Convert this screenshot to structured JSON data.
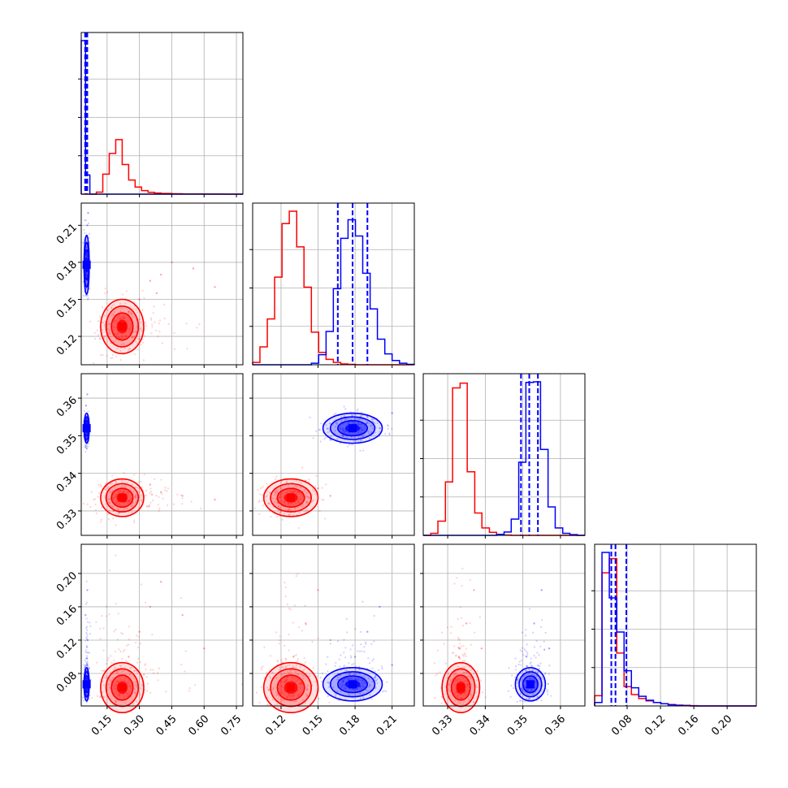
{
  "chart_data": {
    "type": "corner",
    "title": "",
    "colors": {
      "series_a": "#ff0000",
      "series_b": "#0000ff",
      "grid": "#b0b0b0"
    },
    "dims": [
      {
        "range": [
          0.03,
          0.78
        ],
        "ticks": [
          "0.15",
          "0.30",
          "0.45",
          "0.60",
          "0.75"
        ],
        "tick_values": [
          0.15,
          0.3,
          0.45,
          0.6,
          0.75
        ]
      },
      {
        "range": [
          0.097,
          0.228
        ],
        "ticks": [
          "0.12",
          "0.15",
          "0.18",
          "0.21"
        ],
        "tick_values": [
          0.12,
          0.15,
          0.18,
          0.21
        ]
      },
      {
        "range": [
          0.3235,
          0.3665
        ],
        "ticks": [
          "0.33",
          "0.34",
          "0.35",
          "0.36"
        ],
        "tick_values": [
          0.33,
          0.34,
          0.35,
          0.36
        ]
      },
      {
        "range": [
          0.041,
          0.235
        ],
        "ticks": [
          "0.08",
          "0.12",
          "0.16",
          "0.20"
        ],
        "tick_values": [
          0.08,
          0.12,
          0.16,
          0.2
        ]
      }
    ],
    "series": [
      {
        "color": "#ff0000",
        "means": [
          0.22,
          0.128,
          0.3335,
          0.063
        ],
        "sds": [
          0.05,
          0.011,
          0.0025,
          0.015
        ],
        "quantiles": [],
        "histograms": [
          {
            "edges": [
              0.03,
              0.05,
              0.07,
              0.1,
              0.13,
              0.16,
              0.19,
              0.22,
              0.25,
              0.28,
              0.31,
              0.34,
              0.37,
              0.4,
              0.45,
              0.5,
              0.6,
              0.7,
              0.78
            ],
            "counts": [
              0,
              0,
              0,
              130,
              1300,
              2650,
              3550,
              1930,
              920,
              460,
              230,
              120,
              75,
              45,
              28,
              12,
              6,
              0
            ]
          },
          {
            "edges": [
              0.097,
              0.1029,
              0.1089,
              0.1148,
              0.1208,
              0.1267,
              0.1327,
              0.1386,
              0.1446,
              0.1505,
              0.1565,
              0.1624,
              0.1684,
              0.1743,
              0.1803,
              0.1862,
              0.1922,
              0.1981,
              0.2041,
              0.21,
              0.216,
              0.2219,
              0.228
            ],
            "counts": [
              30,
              230,
              590,
              1130,
              1820,
              1980,
              1520,
              1000,
              420,
              160,
              70,
              30,
              10,
              5,
              0,
              0,
              0,
              0,
              0,
              0,
              0,
              0
            ]
          },
          {
            "edges": [
              0.3235,
              0.3255,
              0.3274,
              0.3294,
              0.3313,
              0.3333,
              0.3352,
              0.3372,
              0.3391,
              0.3411,
              0.343,
              0.345,
              0.3469,
              0.3489,
              0.3508,
              0.3528,
              0.3547,
              0.3567,
              0.3586,
              0.3606,
              0.3625,
              0.3645,
              0.3665
            ],
            "counts": [
              0,
              30,
              210,
              790,
              2180,
              2250,
              940,
              330,
              110,
              45,
              15,
              5,
              0,
              0,
              0,
              0,
              0,
              0,
              0,
              0,
              0,
              0
            ]
          },
          {
            "edges": [
              0.041,
              0.0498,
              0.0586,
              0.0675,
              0.0763,
              0.0851,
              0.0939,
              0.1027,
              0.1116,
              0.1204,
              0.1292,
              0.138,
              0.1468,
              0.1557,
              0.1645,
              0.1733,
              0.1821,
              0.1909,
              0.1998,
              0.2086,
              0.2174,
              0.2262,
              0.235
            ],
            "counts": [
              180,
              2340,
              2590,
              930,
              340,
              200,
              130,
              90,
              60,
              40,
              25,
              15,
              10,
              5,
              0,
              0,
              0,
              0,
              0,
              0,
              0,
              0
            ]
          }
        ]
      },
      {
        "color": "#0000ff",
        "means": [
          0.055,
          0.178,
          0.352,
          0.067
        ],
        "sds": [
          0.006,
          0.012,
          0.002,
          0.01
        ],
        "quantiles": [
          [
            0.048,
            0.053,
            0.058
          ],
          [
            0.166,
            0.178,
            0.19
          ],
          [
            0.3495,
            0.3517,
            0.354
          ],
          [
            0.061,
            0.066,
            0.079
          ]
        ],
        "histograms": [
          {
            "edges": [
              0.03,
              0.05,
              0.07,
              0.1,
              0.13,
              0.16,
              0.19,
              0.22,
              0.25,
              0.28,
              0.31,
              0.34,
              0.37,
              0.4,
              0.45,
              0.5,
              0.6,
              0.7,
              0.78
            ],
            "counts": [
              10000,
              1250,
              0,
              0,
              0,
              0,
              0,
              0,
              0,
              0,
              0,
              0,
              0,
              0,
              0,
              0,
              0,
              0
            ]
          },
          {
            "edges": [
              0.097,
              0.1029,
              0.1089,
              0.1148,
              0.1208,
              0.1267,
              0.1327,
              0.1386,
              0.1446,
              0.1505,
              0.1565,
              0.1624,
              0.1684,
              0.1743,
              0.1803,
              0.1862,
              0.1922,
              0.1981,
              0.2041,
              0.21,
              0.216,
              0.2219,
              0.228
            ],
            "counts": [
              0,
              0,
              0,
              0,
              0,
              0,
              0,
              0,
              20,
              130,
              430,
              980,
              1630,
              1870,
              1660,
              1180,
              720,
              330,
              140,
              55,
              20,
              5
            ]
          },
          {
            "edges": [
              0.3235,
              0.3255,
              0.3274,
              0.3294,
              0.3313,
              0.3333,
              0.3352,
              0.3372,
              0.3391,
              0.3411,
              0.343,
              0.345,
              0.3469,
              0.3489,
              0.3508,
              0.3528,
              0.3547,
              0.3567,
              0.3586,
              0.3606,
              0.3625,
              0.3645,
              0.3665
            ],
            "counts": [
              0,
              0,
              0,
              0,
              0,
              0,
              0,
              0,
              0,
              0,
              15,
              50,
              240,
              1080,
              2260,
              2270,
              1270,
              420,
              110,
              30,
              10,
              0
            ]
          },
          {
            "edges": [
              0.041,
              0.0498,
              0.0586,
              0.0675,
              0.0763,
              0.0851,
              0.0939,
              0.1027,
              0.1116,
              0.1204,
              0.1292,
              0.138,
              0.1468,
              0.1557,
              0.1645,
              0.1733,
              0.1821,
              0.1909,
              0.1998,
              0.2086,
              0.2174,
              0.2262,
              0.235
            ],
            "counts": [
              60,
              2700,
              1900,
              1300,
              620,
              320,
              170,
              100,
              60,
              40,
              20,
              10,
              5,
              0,
              0,
              0,
              0,
              0,
              0,
              0,
              0,
              0
            ]
          }
        ]
      }
    ],
    "scatter": [
      {
        "pair": [
          1,
          0
        ],
        "series": [
          {
            "color": "#ff0000",
            "points": [
              [
                0.2,
                0.125
              ],
              [
                0.23,
                0.135
              ],
              [
                0.25,
                0.14
              ],
              [
                0.3,
                0.15
              ],
              [
                0.35,
                0.165
              ],
              [
                0.4,
                0.17
              ],
              [
                0.45,
                0.18
              ],
              [
                0.55,
                0.175
              ],
              [
                0.65,
                0.16
              ],
              [
                0.18,
                0.115
              ],
              [
                0.28,
                0.145
              ],
              [
                0.38,
                0.155
              ]
            ]
          },
          {
            "color": "#0000ff",
            "points": [
              [
                0.05,
                0.17
              ],
              [
                0.055,
                0.18
              ],
              [
                0.06,
                0.19
              ],
              [
                0.05,
                0.2
              ],
              [
                0.058,
                0.21
              ],
              [
                0.048,
                0.165
              ],
              [
                0.062,
                0.22
              ],
              [
                0.054,
                0.155
              ]
            ]
          }
        ]
      },
      {
        "pair": [
          2,
          0
        ],
        "series": [
          {
            "color": "#ff0000",
            "points": [
              [
                0.2,
                0.333
              ],
              [
                0.25,
                0.335
              ],
              [
                0.3,
                0.336
              ],
              [
                0.35,
                0.337
              ],
              [
                0.4,
                0.335
              ],
              [
                0.5,
                0.334
              ],
              [
                0.65,
                0.333
              ],
              [
                0.18,
                0.33
              ]
            ]
          },
          {
            "color": "#0000ff",
            "points": [
              [
                0.05,
                0.35
              ],
              [
                0.055,
                0.352
              ],
              [
                0.06,
                0.355
              ],
              [
                0.052,
                0.358
              ],
              [
                0.058,
                0.361
              ],
              [
                0.05,
                0.347
              ]
            ]
          }
        ]
      },
      {
        "pair": [
          2,
          1
        ],
        "series": [
          {
            "color": "#ff0000",
            "points": [
              [
                0.12,
                0.33
              ],
              [
                0.13,
                0.335
              ],
              [
                0.14,
                0.338
              ],
              [
                0.15,
                0.336
              ],
              [
                0.16,
                0.334
              ],
              [
                0.11,
                0.332
              ]
            ]
          },
          {
            "color": "#0000ff",
            "points": [
              [
                0.17,
                0.35
              ],
              [
                0.18,
                0.353
              ],
              [
                0.19,
                0.355
              ],
              [
                0.2,
                0.352
              ],
              [
                0.21,
                0.356
              ],
              [
                0.16,
                0.349
              ]
            ]
          }
        ]
      },
      {
        "pair": [
          3,
          0
        ],
        "series": [
          {
            "color": "#ff0000",
            "points": [
              [
                0.2,
                0.07
              ],
              [
                0.25,
                0.1
              ],
              [
                0.3,
                0.13
              ],
              [
                0.35,
                0.16
              ],
              [
                0.4,
                0.19
              ],
              [
                0.5,
                0.15
              ],
              [
                0.6,
                0.11
              ],
              [
                0.22,
                0.06
              ]
            ]
          },
          {
            "color": "#0000ff",
            "points": [
              [
                0.05,
                0.07
              ],
              [
                0.055,
                0.09
              ],
              [
                0.06,
                0.12
              ],
              [
                0.05,
                0.15
              ],
              [
                0.058,
                0.18
              ],
              [
                0.052,
                0.06
              ]
            ]
          }
        ]
      },
      {
        "pair": [
          3,
          1
        ],
        "series": [
          {
            "color": "#ff0000",
            "points": [
              [
                0.12,
                0.07
              ],
              [
                0.13,
                0.1
              ],
              [
                0.14,
                0.14
              ],
              [
                0.15,
                0.18
              ],
              [
                0.16,
                0.12
              ],
              [
                0.11,
                0.06
              ]
            ]
          },
          {
            "color": "#0000ff",
            "points": [
              [
                0.17,
                0.07
              ],
              [
                0.18,
                0.1
              ],
              [
                0.19,
                0.13
              ],
              [
                0.2,
                0.16
              ],
              [
                0.21,
                0.09
              ],
              [
                0.16,
                0.065
              ]
            ]
          }
        ]
      },
      {
        "pair": [
          3,
          2
        ],
        "series": [
          {
            "color": "#ff0000",
            "points": [
              [
                0.33,
                0.07
              ],
              [
                0.333,
                0.1
              ],
              [
                0.335,
                0.14
              ],
              [
                0.337,
                0.18
              ],
              [
                0.339,
                0.11
              ],
              [
                0.331,
                0.06
              ]
            ]
          },
          {
            "color": "#0000ff",
            "points": [
              [
                0.349,
                0.07
              ],
              [
                0.351,
                0.1
              ],
              [
                0.353,
                0.14
              ],
              [
                0.355,
                0.18
              ],
              [
                0.357,
                0.11
              ],
              [
                0.35,
                0.065
              ]
            ]
          }
        ]
      }
    ],
    "grid": true,
    "legend": "none"
  }
}
